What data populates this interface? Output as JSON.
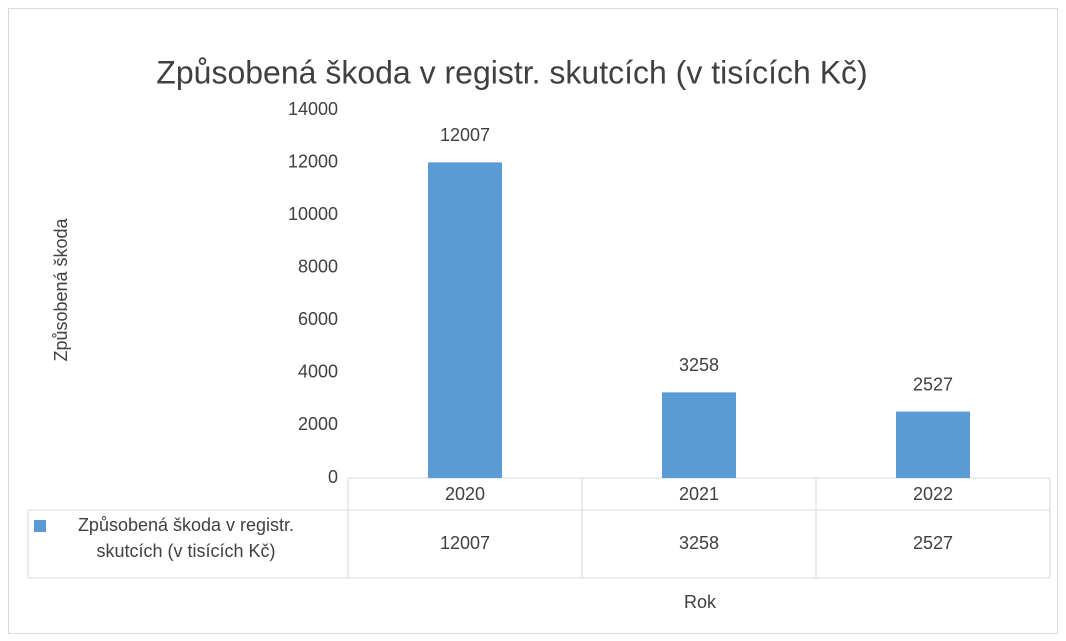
{
  "chart_data": {
    "type": "bar",
    "title": "Způsobená škoda v registr. skutcích (v tisících Kč)",
    "x_label": "Rok",
    "y_label": "Způsobená škoda",
    "categories": [
      "2020",
      "2021",
      "2022"
    ],
    "series": [
      {
        "name": "Způsobená škoda v registr. skutcích (v tisících Kč)",
        "color": "#5b9bd5",
        "values": [
          12007,
          3258,
          2527
        ]
      }
    ],
    "ylim": [
      0,
      14000
    ],
    "yticks": [
      0,
      2000,
      4000,
      6000,
      8000,
      10000,
      12000,
      14000
    ],
    "grid": false,
    "data_labels": true,
    "data_table": true
  }
}
